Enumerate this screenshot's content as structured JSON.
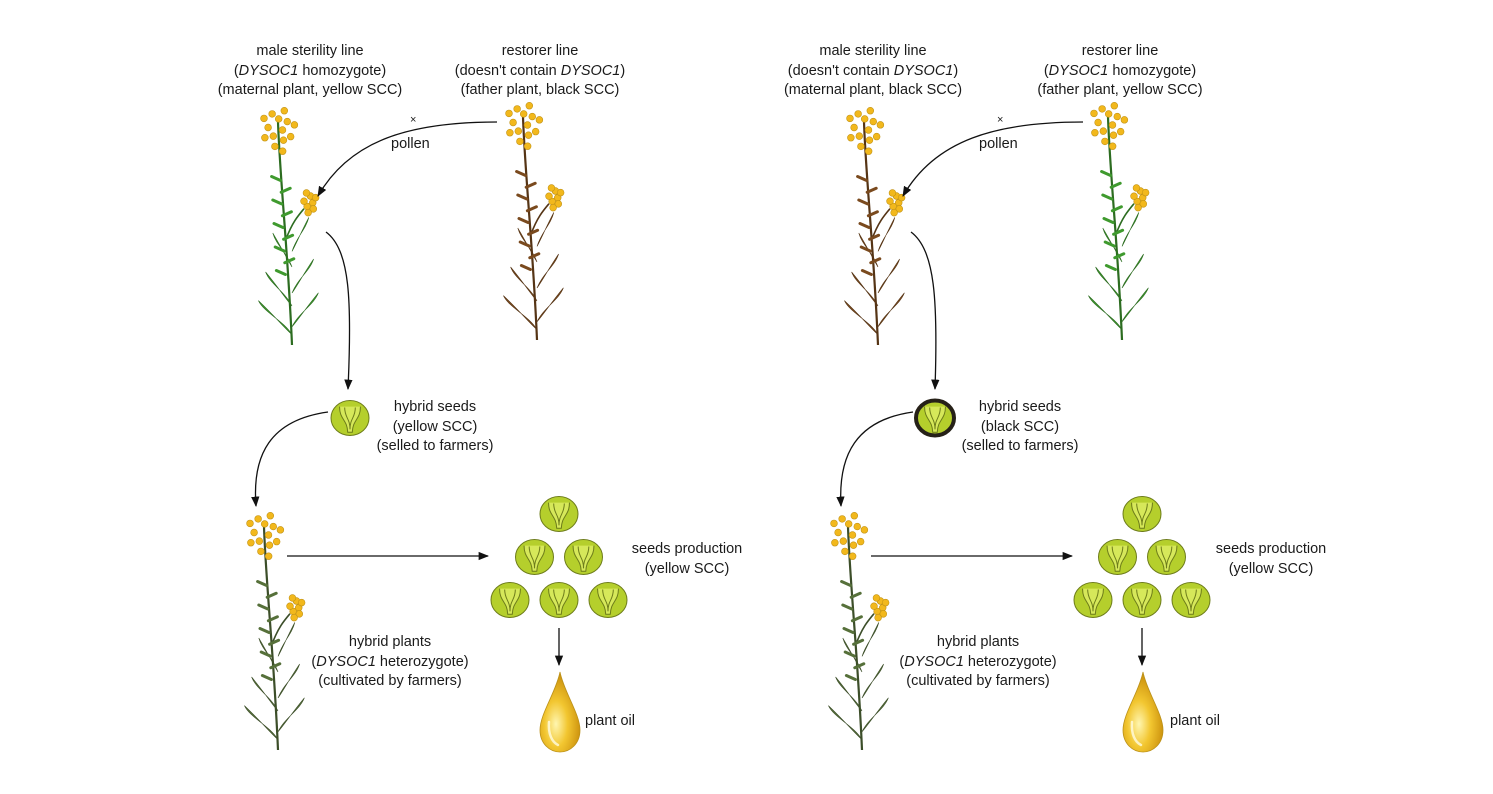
{
  "left": {
    "male_line": {
      "l1": "male sterility line",
      "l2_pre": "(",
      "l2_gene": "DYSOC1",
      "l2_post": " homozygote)",
      "l3": "(maternal plant, yellow SCC)"
    },
    "restorer": {
      "l1": "restorer line",
      "l2_pre": "(doesn't contain ",
      "l2_gene": "DYSOC1",
      "l2_post": ")",
      "l3": "(father plant, black SCC)"
    },
    "cross": "×",
    "pollen": "pollen",
    "hybrid_seeds": {
      "l1": "hybrid seeds",
      "l2": "(yellow SCC)",
      "l3": "(selled to farmers)"
    },
    "hybrid_plants": {
      "l1": "hybrid plants",
      "l2_pre": "(",
      "l2_gene": "DYSOC1",
      "l2_post": " heterozygote)",
      "l3": "(cultivated by farmers)"
    },
    "seeds_production": {
      "l1": "seeds production",
      "l2": "(yellow SCC)"
    },
    "plant_oil": "plant oil"
  },
  "right": {
    "male_line": {
      "l1": "male sterility line",
      "l2_pre": "(doesn't contain ",
      "l2_gene": "DYSOC1",
      "l2_post": ")",
      "l3": "(maternal plant, black SCC)"
    },
    "restorer": {
      "l1": "restorer line",
      "l2_pre": "(",
      "l2_gene": "DYSOC1",
      "l2_post": " homozygote)",
      "l3": "(father plant, yellow SCC)"
    },
    "cross": "×",
    "pollen": "pollen",
    "hybrid_seeds": {
      "l1": "hybrid seeds",
      "l2": "(black SCC)",
      "l3": "(selled to farmers)"
    },
    "hybrid_plants": {
      "l1": "hybrid plants",
      "l2_pre": "(",
      "l2_gene": "DYSOC1",
      "l2_post": " heterozygote)",
      "l3": "(cultivated by farmers)"
    },
    "seeds_production": {
      "l1": "seeds production",
      "l2": "(yellow SCC)"
    },
    "plant_oil": "plant oil"
  },
  "colors": {
    "green_plant": "#3f9a2e",
    "brown_plant": "#7a4a1e",
    "dark_plant": "#56703a",
    "flower": "#f2b81c",
    "seed_fill": "#b5cf2c",
    "seed_inner": "#d6e85a",
    "black_coat": "#262118",
    "oil": "#eab51f"
  }
}
